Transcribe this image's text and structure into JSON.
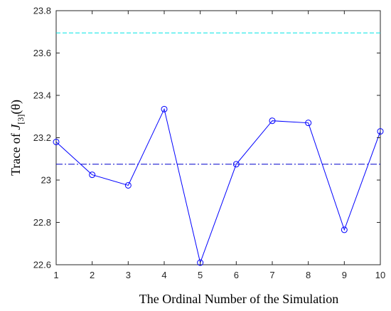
{
  "chart_data": {
    "type": "line",
    "title": "",
    "xlabel": "The Ordinal Number of the Simulation",
    "ylabel": {
      "prefix": "Trace of ",
      "symbol": "J",
      "subscript": "[3]",
      "suffix": "(θ)"
    },
    "xlim": [
      1,
      10
    ],
    "ylim": [
      22.6,
      23.8
    ],
    "xticks": [
      1,
      2,
      3,
      4,
      5,
      6,
      7,
      8,
      9,
      10
    ],
    "yticks": [
      22.6,
      22.8,
      23.0,
      23.2,
      23.4,
      23.6,
      23.8
    ],
    "ytick_labels": [
      "22.6",
      "22.8",
      "23",
      "23.2",
      "23.4",
      "23.6",
      "23.8"
    ],
    "grid": false,
    "series": [
      {
        "x": [
          1,
          2,
          3,
          4,
          5,
          6,
          7,
          8,
          9,
          10
        ],
        "values": [
          23.18,
          23.025,
          22.975,
          23.335,
          22.61,
          23.075,
          23.28,
          23.27,
          22.765,
          23.23
        ],
        "color": "#0000ff",
        "marker": "circle",
        "line_style": "solid"
      }
    ],
    "reference_lines": [
      {
        "y": 23.695,
        "color": "#00e5e5",
        "line_style": "dashed"
      },
      {
        "y": 23.075,
        "color": "#0000cc",
        "line_style": "dash-dot"
      }
    ]
  }
}
